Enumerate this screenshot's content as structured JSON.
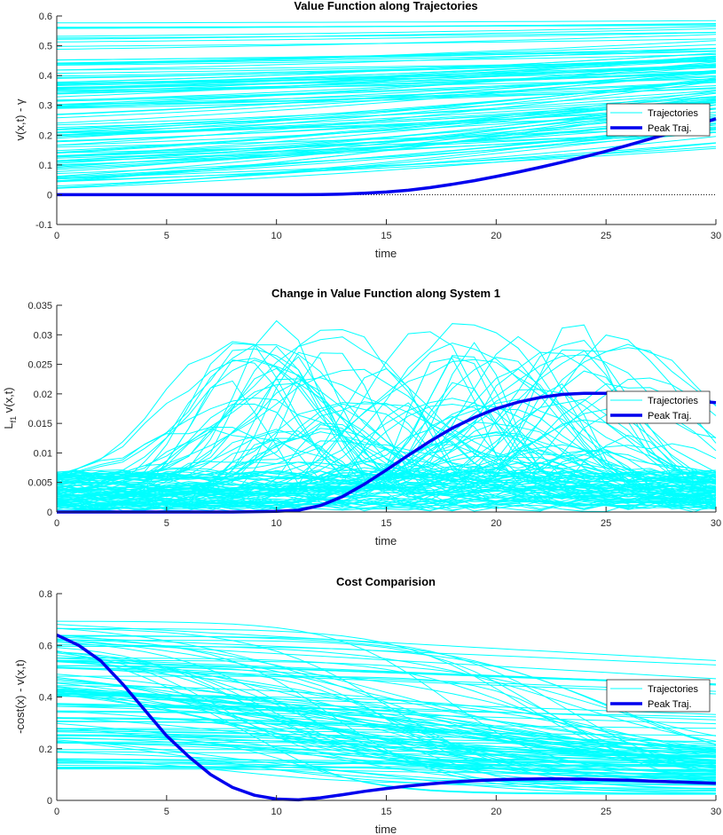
{
  "figure": {
    "background": "#ffffff",
    "traj_color": "#00ffff",
    "peak_color": "#0000ee"
  },
  "chart_data": [
    {
      "type": "line",
      "title": "Value Function along Trajectories",
      "xlabel": "time",
      "ylabel": "v(x,t) - γ",
      "xlim": [
        0,
        30
      ],
      "ylim": [
        -0.1,
        0.6
      ],
      "xticks": [
        "0",
        "5",
        "10",
        "15",
        "20",
        "25",
        "30"
      ],
      "yticks": [
        "-0.1",
        "0",
        "0.1",
        "0.2",
        "0.3",
        "0.4",
        "0.5",
        "0.6"
      ],
      "zero_line": true,
      "legend": {
        "position": "right",
        "entries": [
          "Trajectories",
          "Peak Traj."
        ]
      },
      "series": [
        {
          "name": "Peak Traj.",
          "x": [
            0,
            2,
            4,
            6,
            8,
            10,
            11,
            12,
            13,
            14,
            15,
            16,
            17,
            18,
            19,
            20,
            21,
            22,
            23,
            24,
            25,
            26,
            27,
            28,
            29,
            30
          ],
          "values": [
            0,
            0,
            0,
            0,
            0,
            0,
            0,
            0.0005,
            0.002,
            0.005,
            0.009,
            0.015,
            0.024,
            0.035,
            0.047,
            0.061,
            0.076,
            0.092,
            0.109,
            0.127,
            0.146,
            0.166,
            0.187,
            0.208,
            0.23,
            0.255
          ]
        }
      ]
    },
    {
      "type": "line",
      "title": "Change in Value Function along System 1",
      "xlabel": "time",
      "ylabel": "L_f1 v(x,t)",
      "ylabel_main": "L",
      "ylabel_sub": "f1",
      "ylabel_rest": " v(x,t)",
      "xlim": [
        0,
        30
      ],
      "ylim": [
        0,
        0.035
      ],
      "xticks": [
        "0",
        "5",
        "10",
        "15",
        "20",
        "25",
        "30"
      ],
      "yticks": [
        "0",
        "0.005",
        "0.01",
        "0.015",
        "0.02",
        "0.025",
        "0.03",
        "0.035"
      ],
      "zero_line": false,
      "legend": {
        "position": "right",
        "entries": [
          "Trajectories",
          "Peak Traj."
        ]
      },
      "series": [
        {
          "name": "Peak Traj.",
          "x": [
            0,
            2,
            4,
            6,
            8,
            10,
            11,
            12,
            13,
            14,
            15,
            16,
            17,
            18,
            19,
            20,
            21,
            22,
            23,
            24,
            25,
            26,
            27,
            28,
            29,
            30
          ],
          "values": [
            0,
            0,
            0,
            0,
            0,
            0.0001,
            0.0003,
            0.0011,
            0.0026,
            0.0047,
            0.0071,
            0.0096,
            0.012,
            0.0142,
            0.016,
            0.0175,
            0.0186,
            0.0194,
            0.0199,
            0.0201,
            0.0201,
            0.0199,
            0.0196,
            0.0192,
            0.0188,
            0.0185
          ]
        }
      ]
    },
    {
      "type": "line",
      "title": "Cost Comparision",
      "xlabel": "time",
      "ylabel": "-cost(x) - v(x,t)",
      "xlim": [
        0,
        30
      ],
      "ylim": [
        0,
        0.8
      ],
      "xticks": [
        "0",
        "5",
        "10",
        "15",
        "20",
        "25",
        "30"
      ],
      "yticks": [
        "0",
        "0.2",
        "0.4",
        "0.6",
        "0.8"
      ],
      "zero_line": false,
      "legend": {
        "position": "right",
        "entries": [
          "Trajectories",
          "Peak Traj."
        ]
      },
      "series": [
        {
          "name": "Peak Traj.",
          "x": [
            0,
            1,
            2,
            3,
            4,
            5,
            6,
            7,
            8,
            9,
            10,
            11,
            12,
            13,
            14,
            15,
            16,
            17,
            18,
            19,
            20,
            21,
            22,
            23,
            24,
            25,
            26,
            27,
            28,
            29,
            30
          ],
          "values": [
            0.64,
            0.6,
            0.54,
            0.45,
            0.35,
            0.25,
            0.17,
            0.1,
            0.05,
            0.02,
            0.005,
            0.002,
            0.01,
            0.022,
            0.035,
            0.046,
            0.056,
            0.064,
            0.071,
            0.076,
            0.08,
            0.082,
            0.083,
            0.083,
            0.082,
            0.08,
            0.078,
            0.075,
            0.072,
            0.069,
            0.066
          ]
        }
      ]
    }
  ]
}
